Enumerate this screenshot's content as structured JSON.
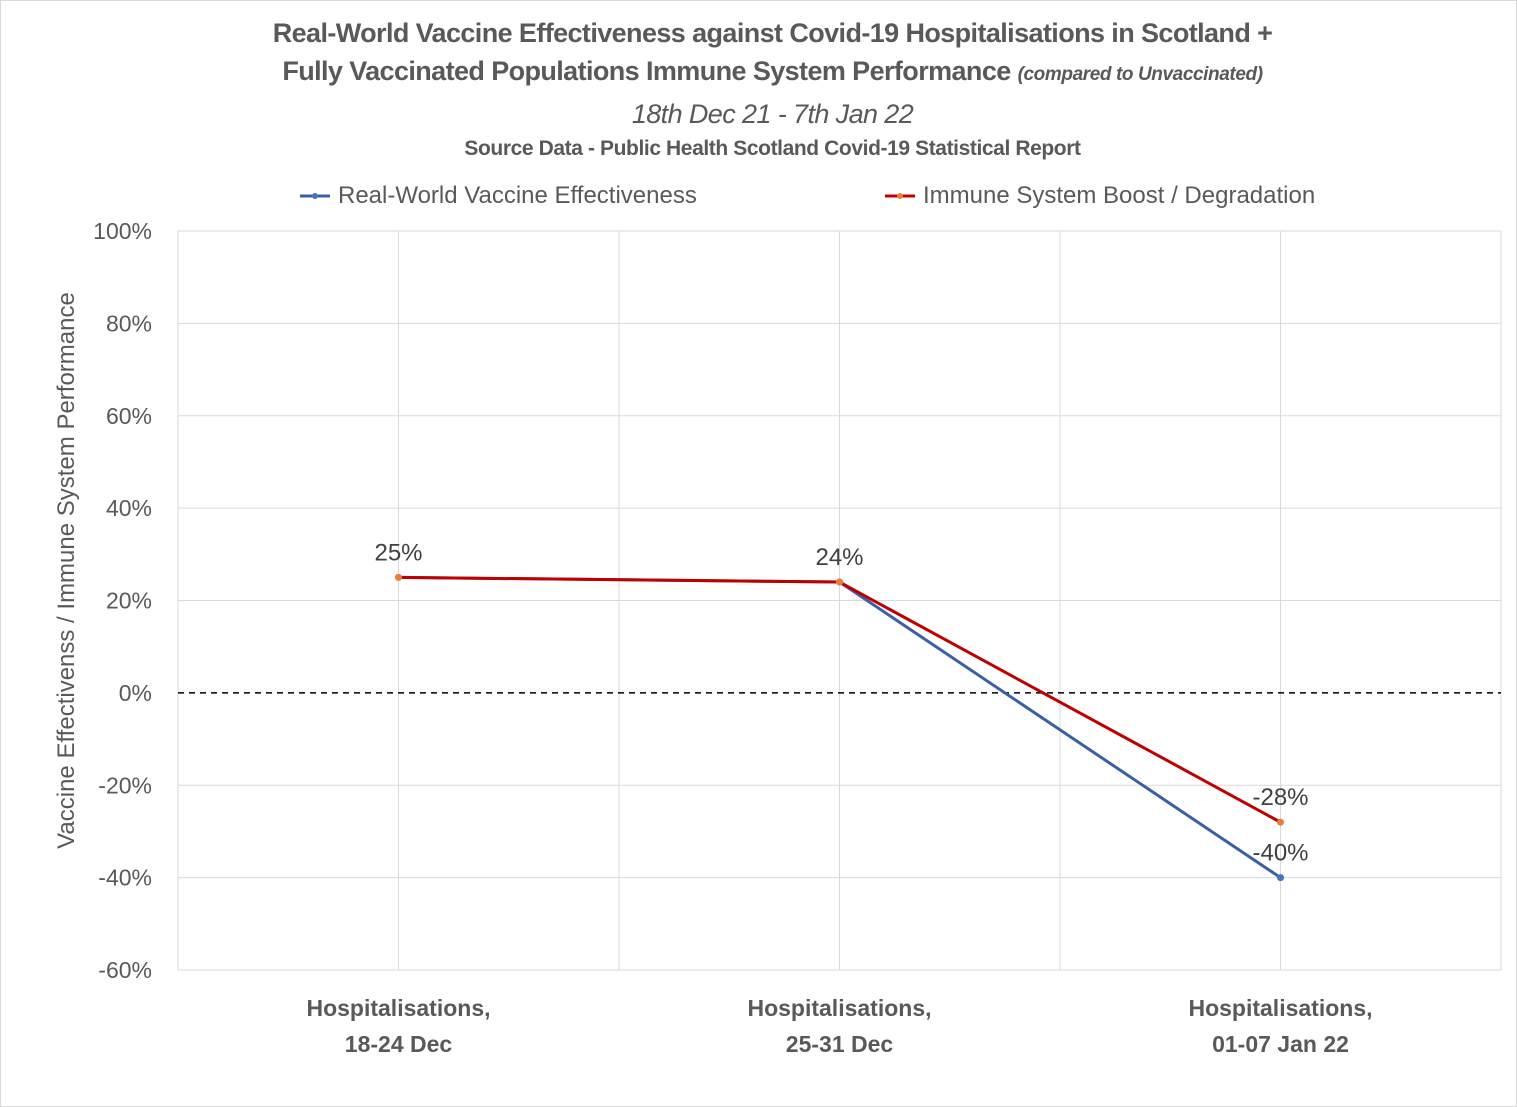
{
  "chart_data": {
    "type": "line",
    "title": "Real-World Vaccine Effectiveness against Covid-19 Hospitalisations in Scotland +",
    "title_line2": "Fully Vaccinated Populations Immune System Performance",
    "title_line2_note": "(compared to Unvaccinated)",
    "subtitle": "18th Dec 21 - 7th Jan 22",
    "source": "Source Data - Public Health Scotland Covid-19 Statistical Report",
    "xlabel": "",
    "ylabel": "Vaccine Effectivenss / Immune System Performance",
    "ylim": [
      -60,
      100
    ],
    "yticks": [
      100,
      80,
      60,
      40,
      20,
      0,
      -20,
      -40,
      -60
    ],
    "ytick_labels": [
      "100%",
      "80%",
      "60%",
      "40%",
      "20%",
      "0%",
      "-20%",
      "-40%",
      "-60%"
    ],
    "categories": [
      [
        "Hospitalisations,",
        "18-24 Dec"
      ],
      [
        "Hospitalisations,",
        "25-31 Dec"
      ],
      [
        "Hospitalisations,",
        "01-07 Jan 22"
      ]
    ],
    "series": [
      {
        "name": "Real-World Vaccine Effectiveness",
        "values": [
          25,
          24,
          -40
        ],
        "color": "#3a5fa8",
        "marker_color": "#4472c4",
        "data_labels": [
          null,
          null,
          "-40%"
        ]
      },
      {
        "name": "Immune System Boost / Degradation",
        "values": [
          25,
          24,
          -28
        ],
        "color": "#c00000",
        "marker_color": "#ed7d31",
        "data_labels": [
          "25%",
          "24%",
          "-28%"
        ]
      }
    ],
    "reference_line": {
      "y": 0,
      "style": "dashed",
      "color": "#000000"
    },
    "grid": true,
    "legend_position": "top"
  }
}
